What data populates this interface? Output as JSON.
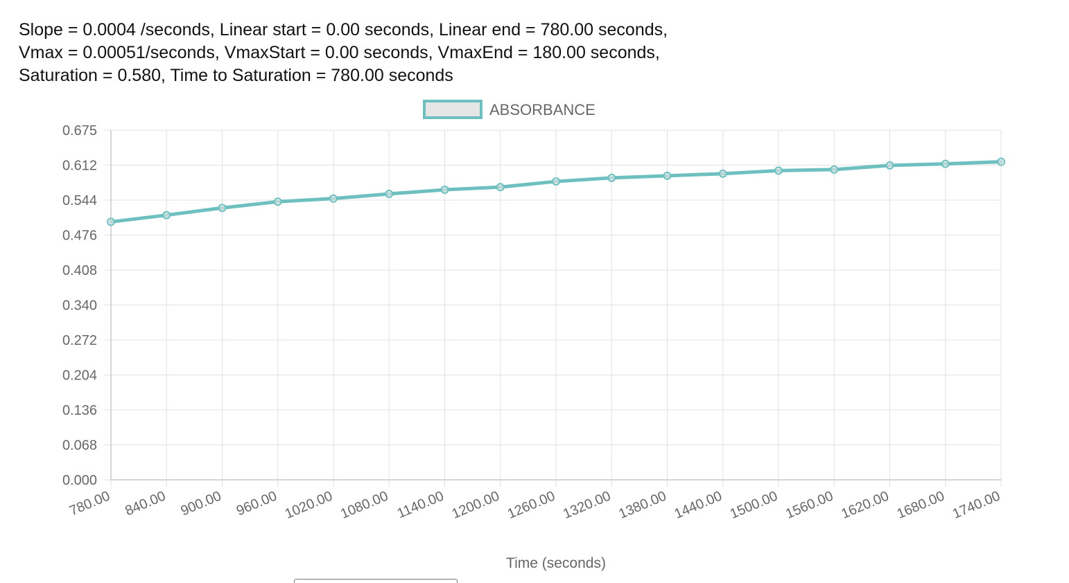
{
  "summary": {
    "line1": "Slope = 0.0004 /seconds, Linear start = 0.00 seconds, Linear end = 780.00 seconds,",
    "line2": "Vmax = 0.00051/seconds, VmaxStart = 0.00 seconds, VmaxEnd = 180.00 seconds,",
    "line3": "Saturation = 0.580, Time to Saturation = 780.00 seconds"
  },
  "colors": {
    "series": "#6dc0bf",
    "legend_fill": "#e6e6e6",
    "grid": "#e1e1e1",
    "axis": "#c8c8c8",
    "tick_text": "#666666"
  },
  "chart_data": {
    "type": "line",
    "xlabel": "Time (seconds)",
    "ylabel": "",
    "legend_position": "top-center",
    "grid": true,
    "x_categories": [
      "780.00",
      "840.00",
      "900.00",
      "960.00",
      "1020.00",
      "1080.00",
      "1140.00",
      "1200.00",
      "1260.00",
      "1320.00",
      "1380.00",
      "1440.00",
      "1500.00",
      "1560.00",
      "1620.00",
      "1680.00",
      "1740.00"
    ],
    "y_ticks": [
      "0.675",
      "0.612",
      "0.544",
      "0.476",
      "0.408",
      "0.340",
      "0.272",
      "0.204",
      "0.136",
      "0.068",
      "0.000"
    ],
    "ylim": [
      0,
      0.675
    ],
    "series": [
      {
        "name": "ABSORBANCE",
        "values": [
          0.498,
          0.511,
          0.525,
          0.537,
          0.543,
          0.552,
          0.56,
          0.565,
          0.576,
          0.583,
          0.587,
          0.591,
          0.597,
          0.599,
          0.607,
          0.61,
          0.614
        ]
      }
    ]
  }
}
